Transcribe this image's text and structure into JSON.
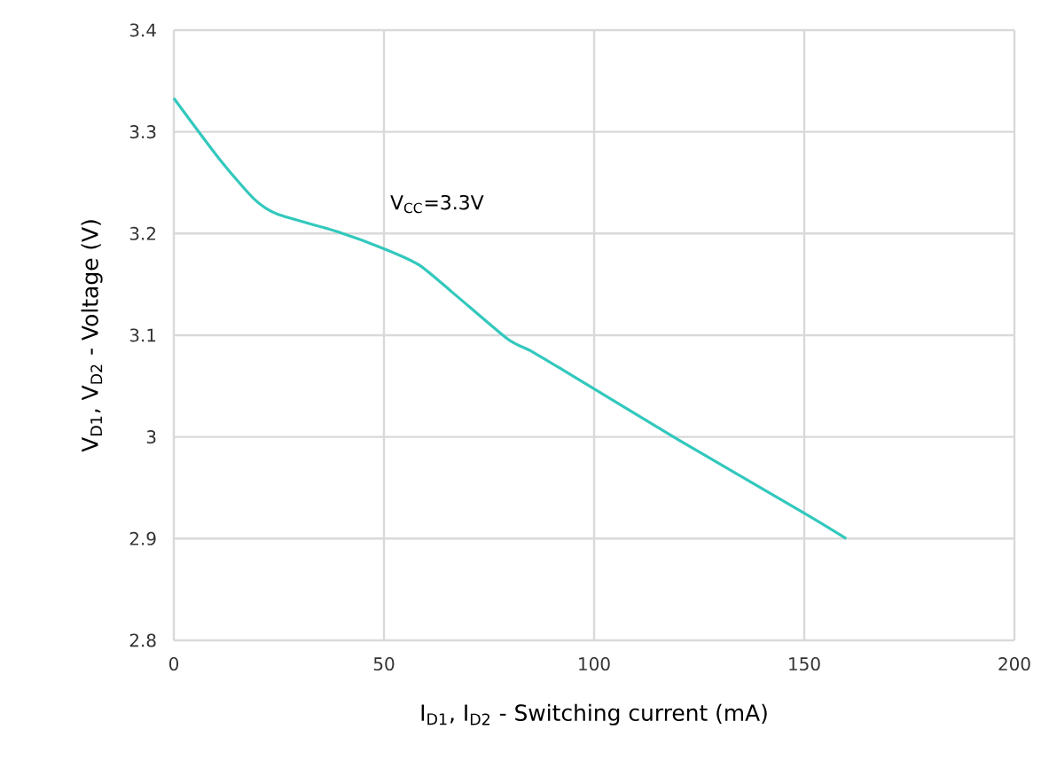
{
  "chart_data": {
    "type": "line",
    "xlabel": "I$_{D1}$, I$_{D2}$ - Switching current (mA)",
    "ylabel": "V$_{D1}$, V$_{D2}$ - Voltage (V)",
    "xlim": [
      0,
      200
    ],
    "xticks": [
      0,
      50,
      100,
      150,
      200
    ],
    "ylim": [
      2.8,
      3.4
    ],
    "yticks": [
      2.8,
      2.9,
      3,
      3.1,
      3.2,
      3.3,
      3.4
    ],
    "grid": true,
    "marker": "none",
    "line_style": "solid",
    "annotations": [
      "V$_{CC}$=3.3V"
    ],
    "series": [
      {
        "color": "#33c8bd",
        "x": [
          0,
          10.7,
          19.1,
          24.7,
          38.8,
          50,
          58.4,
          66.9,
          79.5,
          85.2,
          93.7,
          118.9,
          150,
          160
        ],
        "values": [
          3.333,
          3.274,
          3.234,
          3.219,
          3.202,
          3.185,
          3.169,
          3.14,
          3.096,
          3.084,
          3.063,
          3.0,
          2.925,
          2.9
        ]
      }
    ]
  }
}
